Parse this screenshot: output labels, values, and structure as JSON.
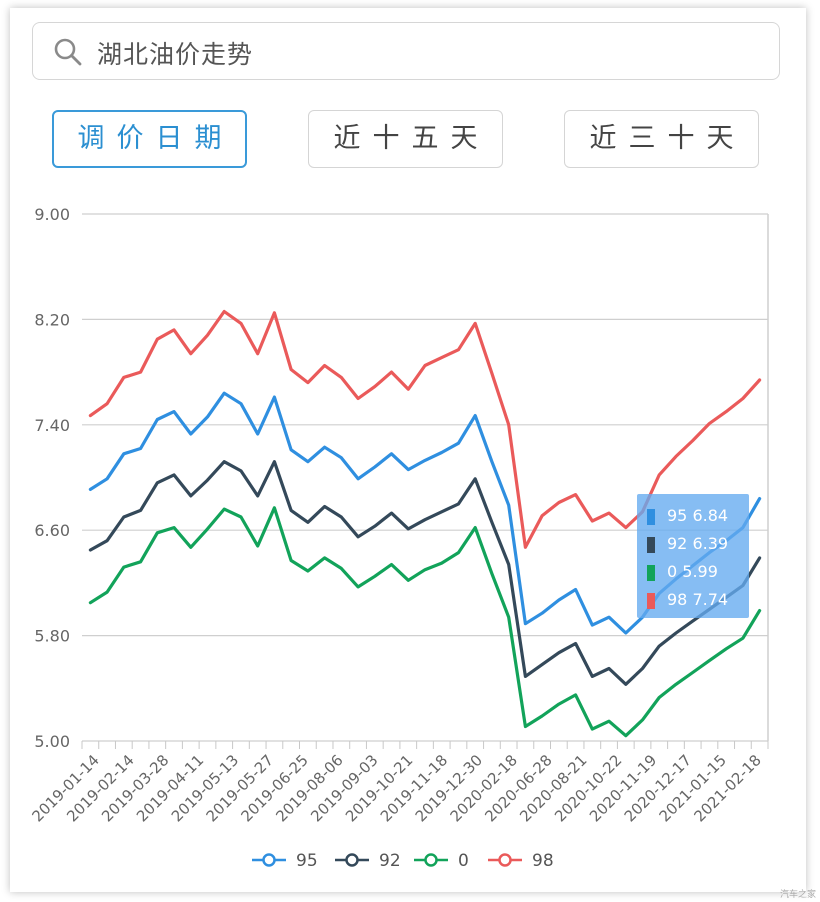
{
  "search": {
    "text": "湖北油价走势",
    "icon": "search-icon"
  },
  "buttons": [
    {
      "label": "调价日期",
      "active": true
    },
    {
      "label": "近十五天",
      "active": false
    },
    {
      "label": "近三十天",
      "active": false
    }
  ],
  "tooltip": {
    "rows": [
      {
        "label": "95 6.84",
        "color": "#2f8fe0"
      },
      {
        "label": "92 6.39",
        "color": "#34495a"
      },
      {
        "label": "0 5.99",
        "color": "#12a35a"
      },
      {
        "label": "98 7.74",
        "color": "#ea5a5a"
      }
    ]
  },
  "watermark": "汽车之家",
  "chart_data": {
    "type": "line",
    "ylim": [
      5.0,
      9.0
    ],
    "yticks": [
      "5.00",
      "5.80",
      "6.60",
      "7.40",
      "8.20",
      "9.00"
    ],
    "xtick_labels": [
      "2019-01-14",
      "2019-02-14",
      "2019-03-28",
      "2019-04-11",
      "2019-05-13",
      "2019-05-27",
      "2019-06-25",
      "2019-08-06",
      "2019-09-03",
      "2019-10-21",
      "2019-11-18",
      "2019-12-30",
      "2020-02-18",
      "2020-06-28",
      "2020-08-21",
      "2020-10-22",
      "2020-11-19",
      "2020-12-17",
      "2021-01-15",
      "2021-02-18"
    ],
    "grid": true,
    "legend_position": "bottom",
    "series": [
      {
        "name": "95",
        "color": "#2f8fe0",
        "values": [
          6.91,
          6.99,
          7.18,
          7.22,
          7.44,
          7.5,
          7.33,
          7.46,
          7.64,
          7.56,
          7.33,
          7.61,
          7.21,
          7.12,
          7.23,
          7.15,
          6.99,
          7.08,
          7.18,
          7.06,
          7.13,
          7.19,
          7.26,
          7.47,
          7.12,
          6.79,
          5.89,
          5.97,
          6.07,
          6.15,
          5.88,
          5.94,
          5.82,
          5.94,
          6.12,
          6.23,
          6.33,
          6.43,
          6.52,
          6.62,
          6.84
        ]
      },
      {
        "name": "92",
        "color": "#34495a",
        "values": [
          6.45,
          6.52,
          6.7,
          6.75,
          6.96,
          7.02,
          6.86,
          6.98,
          7.12,
          7.05,
          6.86,
          7.12,
          6.75,
          6.66,
          6.78,
          6.7,
          6.55,
          6.63,
          6.73,
          6.61,
          6.68,
          6.74,
          6.8,
          6.99,
          6.66,
          6.34,
          5.49,
          5.58,
          5.67,
          5.74,
          5.49,
          5.55,
          5.43,
          5.55,
          5.72,
          5.82,
          5.91,
          6.0,
          6.09,
          6.18,
          6.39
        ]
      },
      {
        "name": "0",
        "color": "#12a35a",
        "values": [
          6.05,
          6.13,
          6.32,
          6.36,
          6.58,
          6.62,
          6.47,
          6.61,
          6.76,
          6.7,
          6.48,
          6.77,
          6.37,
          6.29,
          6.39,
          6.31,
          6.17,
          6.25,
          6.34,
          6.22,
          6.3,
          6.35,
          6.43,
          6.62,
          6.27,
          5.94,
          5.11,
          5.19,
          5.28,
          5.35,
          5.09,
          5.15,
          5.04,
          5.16,
          5.33,
          5.43,
          5.52,
          5.61,
          5.7,
          5.78,
          5.99
        ]
      },
      {
        "name": "98",
        "color": "#ea5a5a",
        "values": [
          7.47,
          7.56,
          7.76,
          7.8,
          8.05,
          8.12,
          7.94,
          8.08,
          8.26,
          8.17,
          7.94,
          8.25,
          7.82,
          7.72,
          7.85,
          7.76,
          7.6,
          7.69,
          7.8,
          7.67,
          7.85,
          7.91,
          7.97,
          8.17,
          7.79,
          7.4,
          6.47,
          6.71,
          6.81,
          6.87,
          6.67,
          6.73,
          6.62,
          6.74,
          7.02,
          7.16,
          7.28,
          7.41,
          7.5,
          7.6,
          7.74
        ]
      }
    ]
  }
}
